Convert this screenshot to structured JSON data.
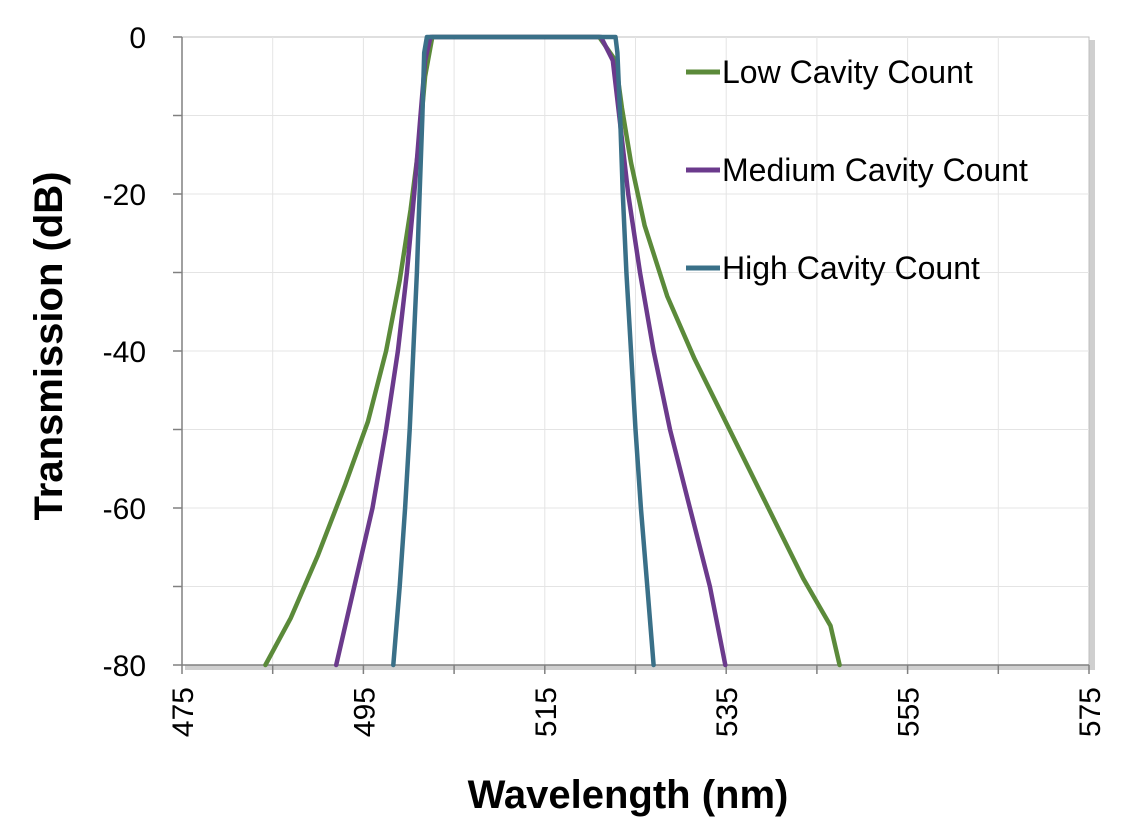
{
  "chart_data": {
    "type": "line",
    "title": "",
    "xlabel": "Wavelength (nm)",
    "ylabel": "Transmission (dB)",
    "xlim": [
      475,
      575
    ],
    "ylim": [
      -80,
      0
    ],
    "x_ticks": [
      "475",
      "495",
      "515",
      "535",
      "555",
      "575"
    ],
    "y_ticks": [
      "0",
      "-20",
      "-40",
      "-60",
      "-80"
    ],
    "grid": true,
    "legend_position": "top-right",
    "series": [
      {
        "name": "Low Cavity Count",
        "color": "#5b8a3a",
        "points": [
          [
            484.2,
            -80
          ],
          [
            487,
            -74
          ],
          [
            490,
            -66
          ],
          [
            493,
            -57
          ],
          [
            495.5,
            -49
          ],
          [
            497.5,
            -40
          ],
          [
            499,
            -31
          ],
          [
            500.2,
            -22
          ],
          [
            501.2,
            -13
          ],
          [
            501.8,
            -5
          ],
          [
            502.6,
            0
          ],
          [
            521,
            0
          ],
          [
            522.8,
            -3
          ],
          [
            523.5,
            -9
          ],
          [
            524.5,
            -16
          ],
          [
            526,
            -24
          ],
          [
            528.5,
            -33
          ],
          [
            531.5,
            -41
          ],
          [
            534.5,
            -48
          ],
          [
            537.5,
            -55
          ],
          [
            540.5,
            -62
          ],
          [
            543.5,
            -69
          ],
          [
            546.5,
            -75
          ],
          [
            547.5,
            -80
          ]
        ]
      },
      {
        "name": "Medium Cavity Count",
        "color": "#6b3a8c",
        "points": [
          [
            492,
            -80
          ],
          [
            494,
            -70
          ],
          [
            496,
            -60
          ],
          [
            497.5,
            -50
          ],
          [
            498.8,
            -40
          ],
          [
            499.8,
            -30
          ],
          [
            500.6,
            -20
          ],
          [
            501.3,
            -10
          ],
          [
            501.8,
            -3
          ],
          [
            502.4,
            0
          ],
          [
            521.2,
            0
          ],
          [
            522.5,
            -3
          ],
          [
            523.2,
            -10
          ],
          [
            524.2,
            -20
          ],
          [
            525.5,
            -30
          ],
          [
            527,
            -40
          ],
          [
            528.8,
            -50
          ],
          [
            531,
            -60
          ],
          [
            533.2,
            -70
          ],
          [
            534.9,
            -80
          ]
        ]
      },
      {
        "name": "High Cavity Count",
        "color": "#3a7088",
        "points": [
          [
            498.3,
            -80
          ],
          [
            499,
            -70
          ],
          [
            499.6,
            -60
          ],
          [
            500.1,
            -50
          ],
          [
            500.5,
            -40
          ],
          [
            500.9,
            -30
          ],
          [
            501.2,
            -20
          ],
          [
            501.5,
            -10
          ],
          [
            501.7,
            -2
          ],
          [
            502,
            0
          ],
          [
            522.8,
            0
          ],
          [
            523,
            -2
          ],
          [
            523.3,
            -10
          ],
          [
            523.6,
            -20
          ],
          [
            524,
            -30
          ],
          [
            524.5,
            -40
          ],
          [
            525,
            -50
          ],
          [
            525.6,
            -60
          ],
          [
            526.3,
            -70
          ],
          [
            527,
            -80
          ]
        ]
      }
    ]
  }
}
